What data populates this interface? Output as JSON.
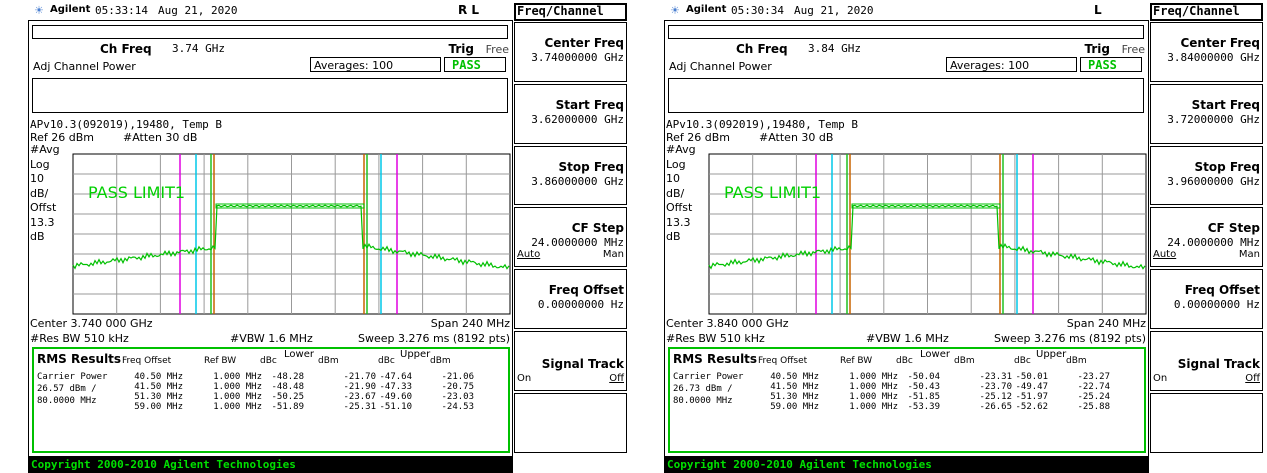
{
  "panels": [
    {
      "header": {
        "brand": "Agilent",
        "time": "05:33:14",
        "date": "Aug 21, 2020",
        "flags": "R L"
      },
      "ch_freq_label": "Ch Freq",
      "ch_freq": "3.74 GHz",
      "trig_label": "Trig",
      "trig": "Free",
      "mode": "Adj Channel Power",
      "averages": "Averages: 100",
      "status": "PASS",
      "info": "APv10.3(092019),19480, Temp B",
      "ref": "Ref 26 dBm",
      "atten": "#Atten 30 dB",
      "scale_labels": [
        "#Avg",
        "Log",
        "10",
        "dB/",
        "Offst",
        "13.3",
        "dB"
      ],
      "limit": "PASS LIMIT1",
      "center": "Center 3.740 000 GHz",
      "span": "Span 240 MHz",
      "res_bw": "#Res BW 510 kHz",
      "vbw": "#VBW 1.6 MHz",
      "sweep": "Sweep 3.276 ms (8192 pts)",
      "results": {
        "title": "RMS Results",
        "headers": [
          "Freq Offset",
          "Ref BW",
          "dBc",
          "Lower",
          "dBm",
          "dBc",
          "Upper",
          "dBm"
        ],
        "carrier": [
          "Carrier Power",
          "26.57 dBm /",
          "80.0000 MHz"
        ],
        "rows": [
          [
            "40.50 MHz",
            "1.000 MHz",
            "-48.28",
            "-21.70",
            "-47.64",
            "-21.06"
          ],
          [
            "41.50 MHz",
            "1.000 MHz",
            "-48.48",
            "-21.90",
            "-47.33",
            "-20.75"
          ],
          [
            "51.30 MHz",
            "1.000 MHz",
            "-50.25",
            "-23.67",
            "-49.60",
            "-23.03"
          ],
          [
            "59.00 MHz",
            "1.000 MHz",
            "-51.89",
            "-25.31",
            "-51.10",
            "-24.53"
          ]
        ]
      },
      "copyright": "Copyright 2000-2010 Agilent Technologies",
      "menu": {
        "title": "Freq/Channel",
        "keys": [
          {
            "label": "Center Freq",
            "value": "3.74000000 GHz"
          },
          {
            "label": "Start Freq",
            "value": "3.62000000 GHz"
          },
          {
            "label": "Stop Freq",
            "value": "3.86000000 GHz"
          },
          {
            "label": "CF Step",
            "value": "24.0000000 MHz",
            "options": [
              "Auto",
              "Man"
            ]
          },
          {
            "label": "Freq Offset",
            "value": "0.00000000 Hz"
          },
          {
            "label": "Signal Track",
            "options": [
              "On",
              "Off"
            ]
          }
        ]
      }
    },
    {
      "header": {
        "brand": "Agilent",
        "time": "05:30:34",
        "date": "Aug 21, 2020",
        "flags": "L"
      },
      "ch_freq_label": "Ch Freq",
      "ch_freq": "3.84 GHz",
      "trig_label": "Trig",
      "trig": "Free",
      "mode": "Adj Channel Power",
      "averages": "Averages: 100",
      "status": "PASS",
      "info": "APv10.3(092019),19480, Temp B",
      "ref": "Ref 26 dBm",
      "atten": "#Atten 30 dB",
      "scale_labels": [
        "#Avg",
        "Log",
        "10",
        "dB/",
        "Offst",
        "13.3",
        "dB"
      ],
      "limit": "PASS LIMIT1",
      "center": "Center 3.840 000 GHz",
      "span": "Span 240 MHz",
      "res_bw": "#Res BW 510 kHz",
      "vbw": "#VBW 1.6 MHz",
      "sweep": "Sweep 3.276 ms (8192 pts)",
      "results": {
        "title": "RMS Results",
        "headers": [
          "Freq Offset",
          "Ref BW",
          "dBc",
          "Lower",
          "dBm",
          "dBc",
          "Upper",
          "dBm"
        ],
        "carrier": [
          "Carrier Power",
          "26.73 dBm /",
          "80.0000 MHz"
        ],
        "rows": [
          [
            "40.50 MHz",
            "1.000 MHz",
            "-50.04",
            "-23.31",
            "-50.01",
            "-23.27"
          ],
          [
            "41.50 MHz",
            "1.000 MHz",
            "-50.43",
            "-23.70",
            "-49.47",
            "-22.74"
          ],
          [
            "51.30 MHz",
            "1.000 MHz",
            "-51.85",
            "-25.12",
            "-51.97",
            "-25.24"
          ],
          [
            "59.00 MHz",
            "1.000 MHz",
            "-53.39",
            "-26.65",
            "-52.62",
            "-25.88"
          ]
        ]
      },
      "copyright": "Copyright 2000-2010 Agilent Technologies",
      "menu": {
        "title": "Freq/Channel",
        "keys": [
          {
            "label": "Center Freq",
            "value": "3.84000000 GHz"
          },
          {
            "label": "Start Freq",
            "value": "3.72000000 GHz"
          },
          {
            "label": "Stop Freq",
            "value": "3.96000000 GHz"
          },
          {
            "label": "CF Step",
            "value": "24.0000000 MHz",
            "options": [
              "Auto",
              "Man"
            ]
          },
          {
            "label": "Freq Offset",
            "value": "0.00000000 Hz"
          },
          {
            "label": "Signal Track",
            "options": [
              "On",
              "Off"
            ]
          }
        ]
      }
    }
  ]
}
